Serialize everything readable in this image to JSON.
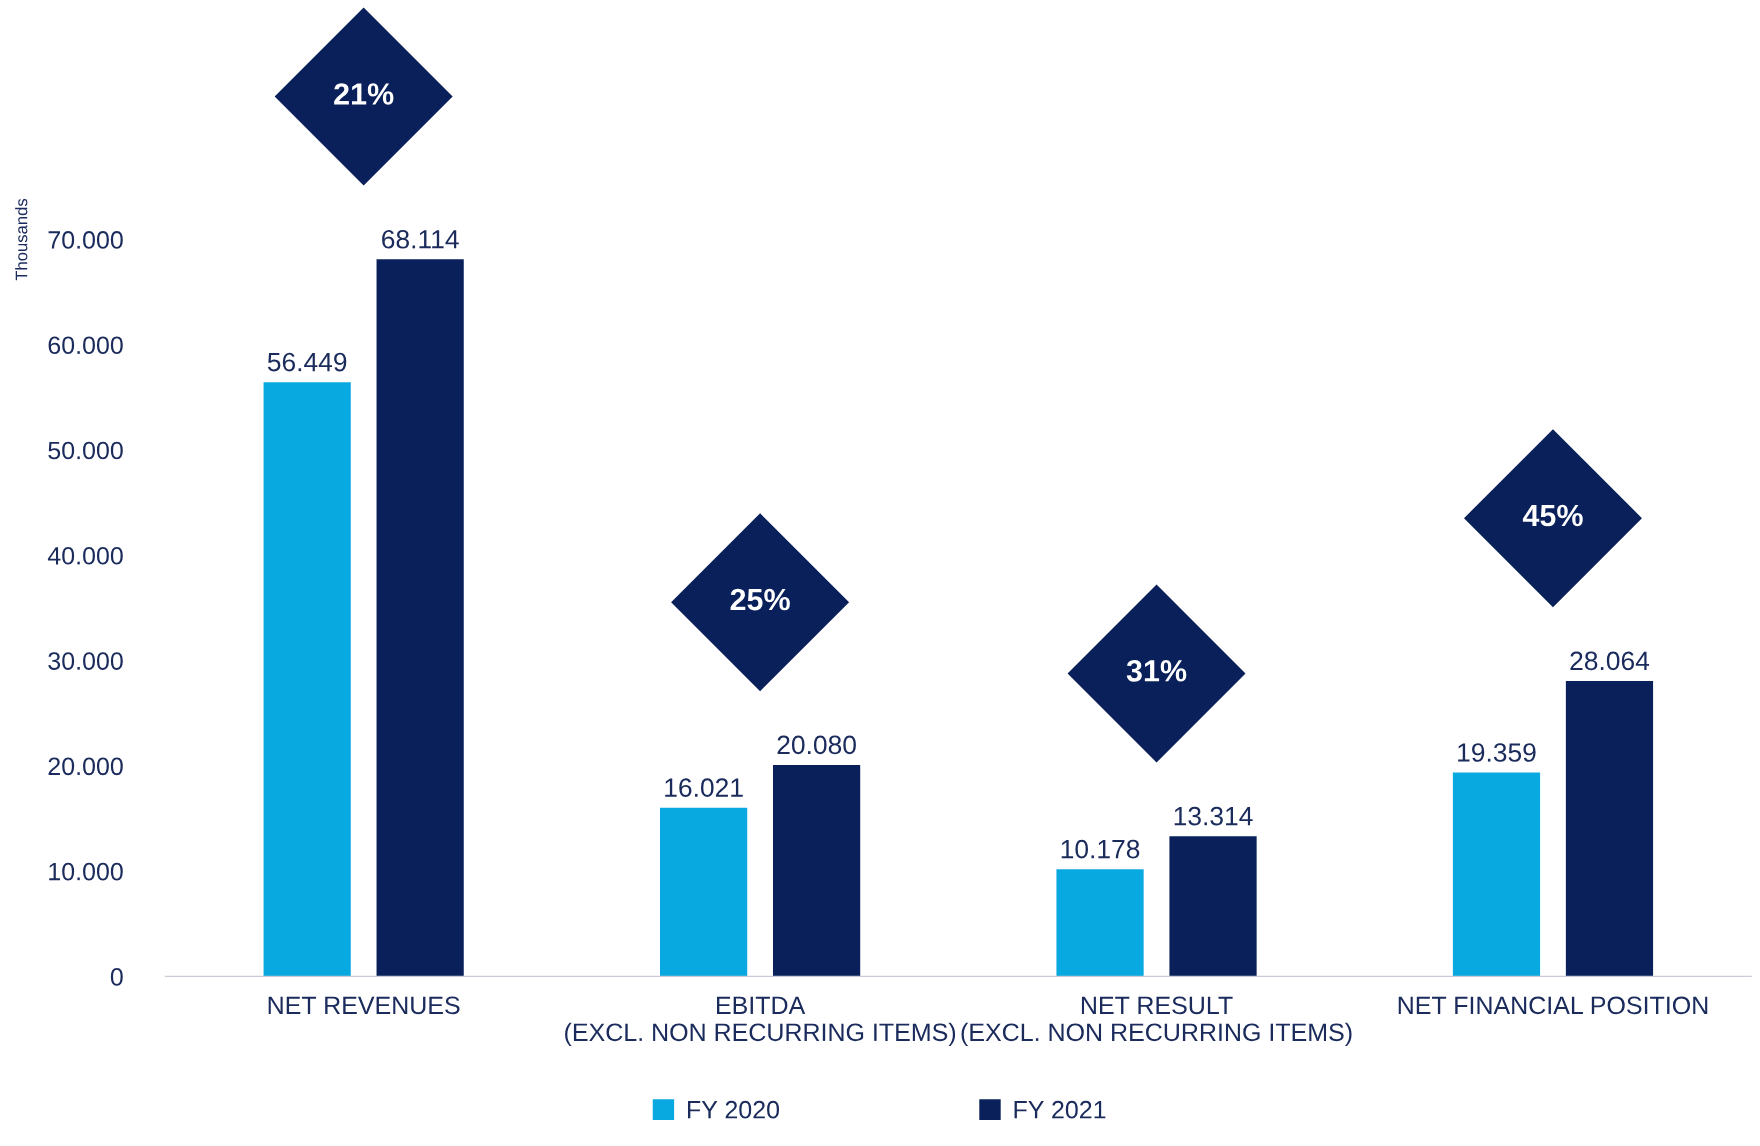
{
  "chart_data": {
    "type": "bar",
    "categories": [
      "NET REVENUES",
      "EBITDA\n(EXCL. NON RECURRING ITEMS)",
      "NET RESULT\n(EXCL. NON RECURRING ITEMS)",
      "NET FINANCIAL POSITION"
    ],
    "series": [
      {
        "name": "FY 2020",
        "color": "#08a8e0",
        "values": [
          56449,
          16021,
          10178,
          19359
        ],
        "value_labels": [
          "56.449",
          "16.021",
          "10.178",
          "19.359"
        ]
      },
      {
        "name": "FY 2021",
        "color": "#0a205a",
        "values": [
          68114,
          20080,
          13314,
          28064
        ],
        "value_labels": [
          "68.114",
          "20.080",
          "13.314",
          "28.064"
        ]
      }
    ],
    "ylabel": "Thousands",
    "ylim": [
      0,
      70000
    ],
    "yticks": [
      {
        "value": 0,
        "label": "0"
      },
      {
        "value": 10000,
        "label": "10.000"
      },
      {
        "value": 20000,
        "label": "20.000"
      },
      {
        "value": 30000,
        "label": "30.000"
      },
      {
        "value": 40000,
        "label": "40.000"
      },
      {
        "value": 50000,
        "label": "50.000"
      },
      {
        "value": 60000,
        "label": "60.000"
      },
      {
        "value": 70000,
        "label": "70.000"
      }
    ],
    "annotations": [
      "21%",
      "25%",
      "31%",
      "45%"
    ],
    "grid": false,
    "legend": "bottom"
  }
}
